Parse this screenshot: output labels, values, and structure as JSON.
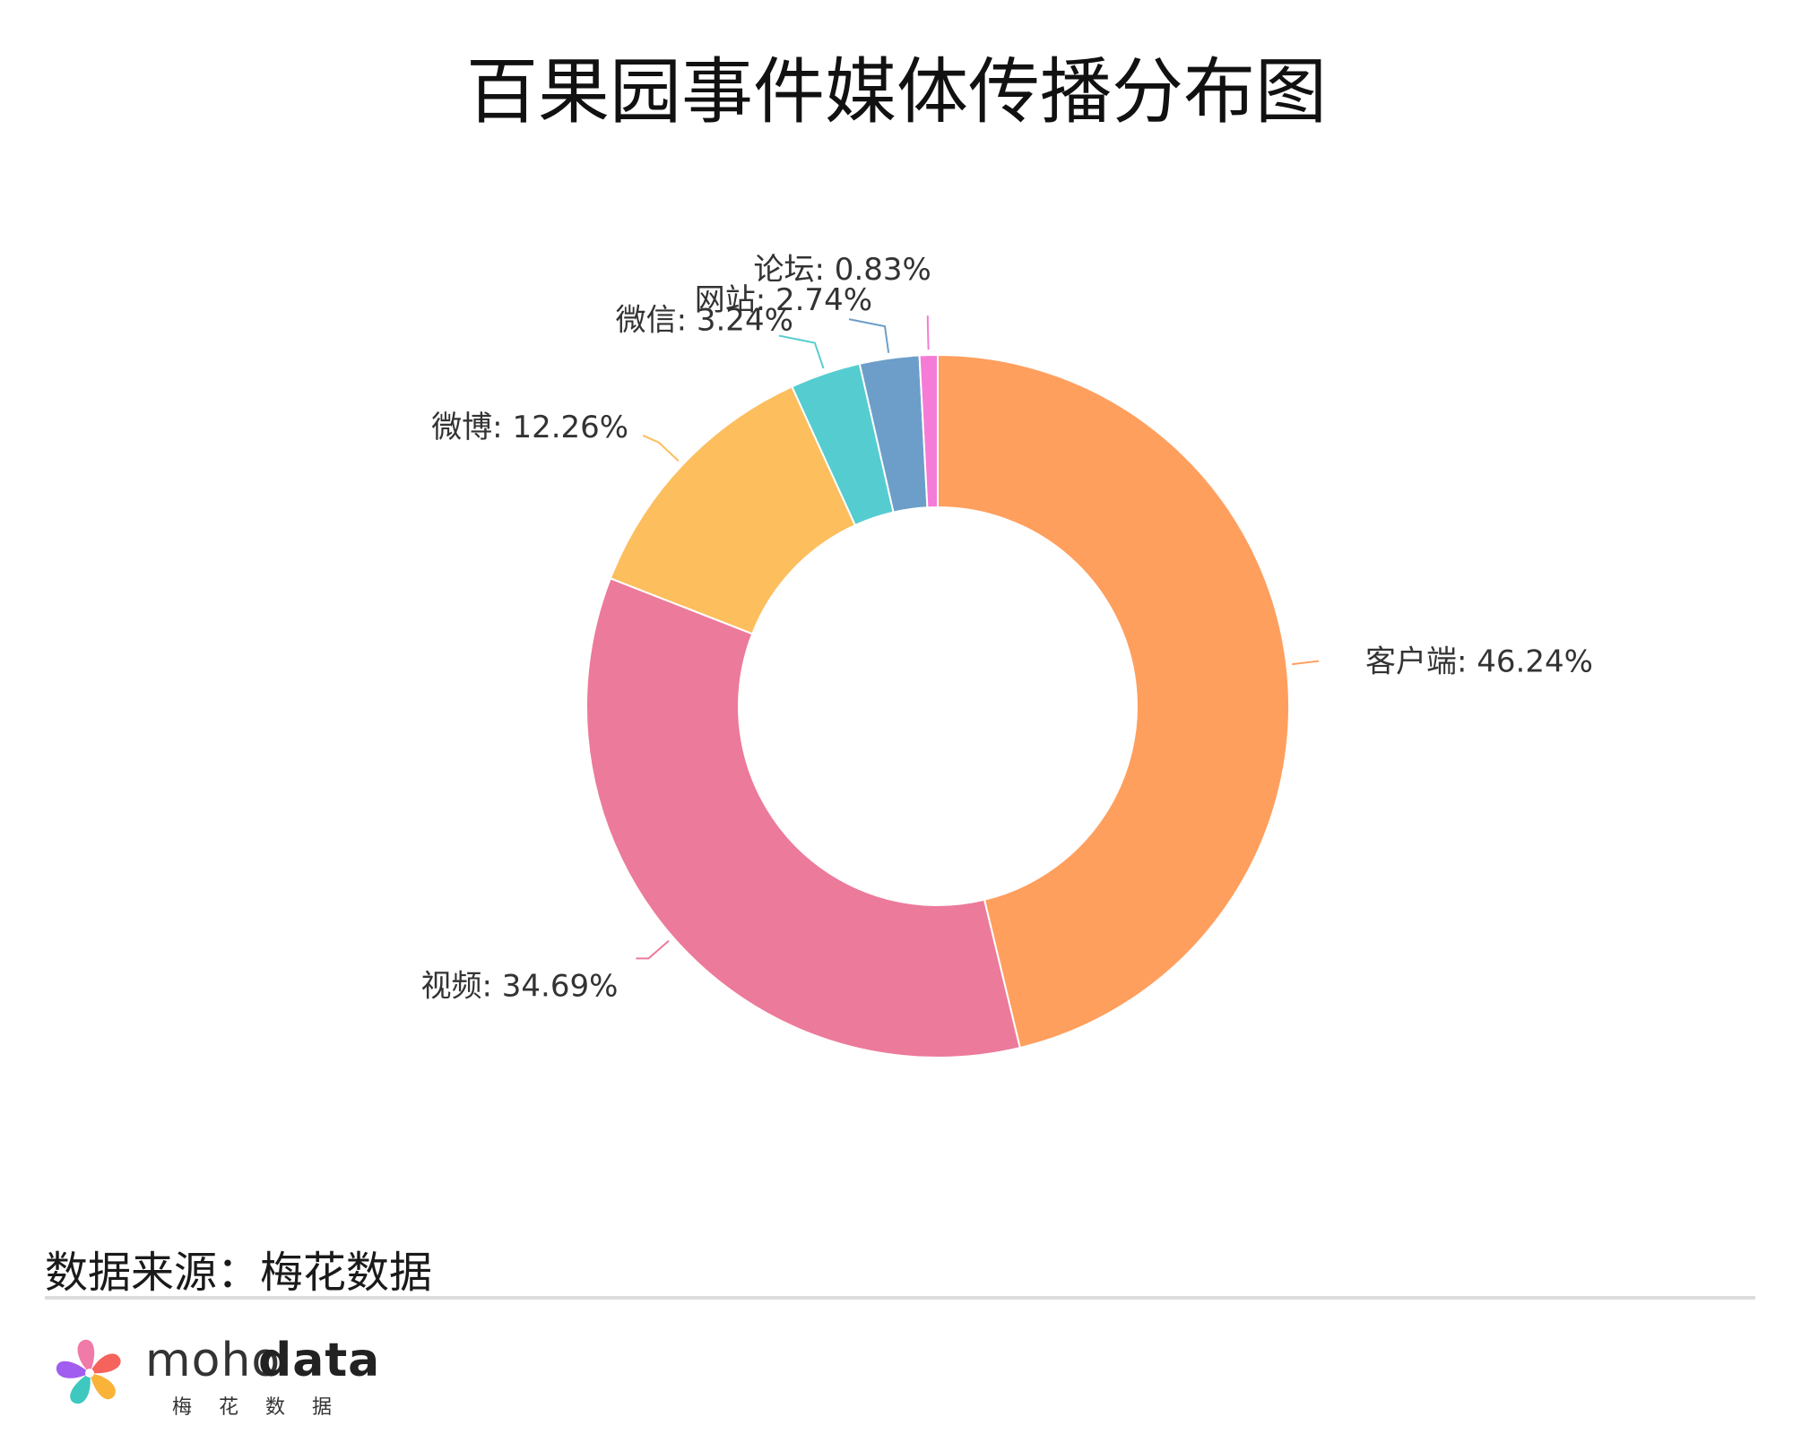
{
  "chart_data": {
    "type": "pie",
    "variant": "donut",
    "title": "百果园事件媒体传播分布图",
    "slices": [
      {
        "label": "客户端",
        "value": 46.24,
        "display": "客户端: 46.24%",
        "color": "#FF9F5E"
      },
      {
        "label": "视频",
        "value": 34.69,
        "display": "视频: 34.69%",
        "color": "#EC7A9B"
      },
      {
        "label": "微博",
        "value": 12.26,
        "display": "微博: 12.26%",
        "color": "#FDBE5E"
      },
      {
        "label": "微信",
        "value": 3.24,
        "display": "微信: 3.24%",
        "color": "#55CDD0"
      },
      {
        "label": "网站",
        "value": 2.74,
        "display": "网站: 2.74%",
        "color": "#6C9EC9"
      },
      {
        "label": "论坛",
        "value": 0.83,
        "display": "论坛: 0.83%",
        "color": "#F57CD6"
      }
    ]
  },
  "footer": {
    "source": "数据来源：梅花数据",
    "brand_light": "moho",
    "brand_bold": "data",
    "brand_cn": "梅花数据"
  },
  "logo_colors": [
    "#F5635C",
    "#FAB339",
    "#3EC8C0",
    "#A15CF0",
    "#F07AA8"
  ]
}
